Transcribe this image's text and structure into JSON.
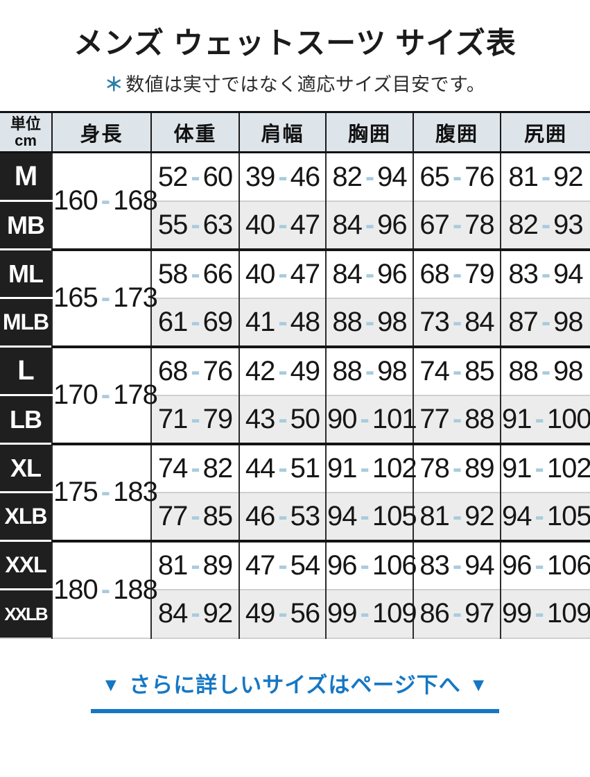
{
  "title": "メンズ ウェットスーツ サイズ表",
  "note": {
    "asterisk": "＊",
    "text": "数値は実寸ではなく適応サイズ目安です。"
  },
  "table": {
    "sep": "-",
    "unit_cell": {
      "line1": "単位",
      "line2": "cm"
    },
    "columns": [
      "身長",
      "体重",
      "肩幅",
      "胸囲",
      "腹囲",
      "尻囲"
    ],
    "groups": [
      {
        "height": [
          "160",
          "168"
        ],
        "rows": [
          {
            "size": "M",
            "values": [
              [
                "52",
                "60"
              ],
              [
                "39",
                "46"
              ],
              [
                "82",
                "94"
              ],
              [
                "65",
                "76"
              ],
              [
                "81",
                "92"
              ]
            ]
          },
          {
            "size": "MB",
            "values": [
              [
                "55",
                "63"
              ],
              [
                "40",
                "47"
              ],
              [
                "84",
                "96"
              ],
              [
                "67",
                "78"
              ],
              [
                "82",
                "93"
              ]
            ]
          }
        ]
      },
      {
        "height": [
          "165",
          "173"
        ],
        "rows": [
          {
            "size": "ML",
            "values": [
              [
                "58",
                "66"
              ],
              [
                "40",
                "47"
              ],
              [
                "84",
                "96"
              ],
              [
                "68",
                "79"
              ],
              [
                "83",
                "94"
              ]
            ]
          },
          {
            "size": "MLB",
            "values": [
              [
                "61",
                "69"
              ],
              [
                "41",
                "48"
              ],
              [
                "88",
                "98"
              ],
              [
                "73",
                "84"
              ],
              [
                "87",
                "98"
              ]
            ]
          }
        ]
      },
      {
        "height": [
          "170",
          "178"
        ],
        "rows": [
          {
            "size": "L",
            "values": [
              [
                "68",
                "76"
              ],
              [
                "42",
                "49"
              ],
              [
                "88",
                "98"
              ],
              [
                "74",
                "85"
              ],
              [
                "88",
                "98"
              ]
            ]
          },
          {
            "size": "LB",
            "values": [
              [
                "71",
                "79"
              ],
              [
                "43",
                "50"
              ],
              [
                "90",
                "101"
              ],
              [
                "77",
                "88"
              ],
              [
                "91",
                "100"
              ]
            ]
          }
        ]
      },
      {
        "height": [
          "175",
          "183"
        ],
        "rows": [
          {
            "size": "XL",
            "values": [
              [
                "74",
                "82"
              ],
              [
                "44",
                "51"
              ],
              [
                "91",
                "102"
              ],
              [
                "78",
                "89"
              ],
              [
                "91",
                "102"
              ]
            ]
          },
          {
            "size": "XLB",
            "values": [
              [
                "77",
                "85"
              ],
              [
                "46",
                "53"
              ],
              [
                "94",
                "105"
              ],
              [
                "81",
                "92"
              ],
              [
                "94",
                "105"
              ]
            ]
          }
        ]
      },
      {
        "height": [
          "180",
          "188"
        ],
        "rows": [
          {
            "size": "XXL",
            "values": [
              [
                "81",
                "89"
              ],
              [
                "47",
                "54"
              ],
              [
                "96",
                "106"
              ],
              [
                "83",
                "94"
              ],
              [
                "96",
                "106"
              ]
            ]
          },
          {
            "size": "XXLB",
            "values": [
              [
                "84",
                "92"
              ],
              [
                "49",
                "56"
              ],
              [
                "99",
                "109"
              ],
              [
                "86",
                "97"
              ],
              [
                "99",
                "109"
              ]
            ]
          }
        ]
      }
    ]
  },
  "footer": {
    "arrow_left": "▼",
    "arrow_right": "▼",
    "link_text": "さらに詳しいサイズはページ下へ"
  },
  "colors": {
    "link_blue": "#1577c4",
    "dash_blue": "#a9cbdd",
    "asterisk_blue": "#2d7fa7",
    "header_bg": "#dde4ea",
    "label_bg": "#1f1f1f",
    "alt_row_bg": "#ececec"
  }
}
